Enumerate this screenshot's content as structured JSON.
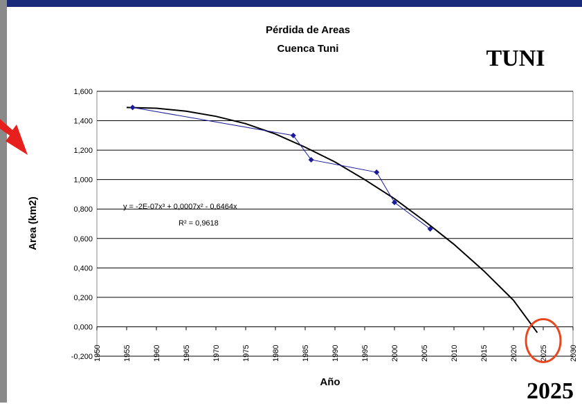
{
  "chart_data": {
    "type": "line",
    "title": "Pérdida de Areas",
    "subtitle": "Cuenca Tuni",
    "x_label": "Año",
    "y_label": "Area (km2)",
    "badge": "TUNI",
    "highlight_label": "2025",
    "highlight_x": 2025,
    "equation": "y = -2E-07x³ + 0,0007x² - 0,6464x",
    "r_squared": "R² = 0,9618",
    "xlim": [
      1950,
      2030
    ],
    "xticks": [
      1950,
      1955,
      1960,
      1965,
      1970,
      1975,
      1980,
      1985,
      1990,
      1995,
      2000,
      2005,
      2010,
      2015,
      2020,
      2025,
      2030
    ],
    "ylim": [
      -0.2,
      1.6
    ],
    "yticks": [
      {
        "value": -0.2,
        "label": "-0,200"
      },
      {
        "value": 0,
        "label": "0,000"
      },
      {
        "value": 0.2,
        "label": "0,200"
      },
      {
        "value": 0.4,
        "label": "0,400"
      },
      {
        "value": 0.6,
        "label": "0,600"
      },
      {
        "value": 0.8,
        "label": "0,800"
      },
      {
        "value": 1.0,
        "label": "1,000"
      },
      {
        "value": 1.2,
        "label": "1,200"
      },
      {
        "value": 1.4,
        "label": "1,400"
      },
      {
        "value": 1.6,
        "label": "1,600"
      }
    ],
    "grid": true,
    "series": [
      {
        "color": "#1a1a9a",
        "x": [
          1956,
          1983,
          1986,
          1997,
          2000,
          2006
        ],
        "values": [
          1.49,
          1.3,
          1.135,
          1.05,
          0.845,
          0.665
        ]
      }
    ],
    "trendline": {
      "color": "#000000",
      "x": [
        1955,
        1960,
        1965,
        1970,
        1975,
        1980,
        1985,
        1990,
        1995,
        2000,
        2005,
        2010,
        2015,
        2020,
        2024
      ],
      "values": [
        1.49,
        1.485,
        1.465,
        1.43,
        1.38,
        1.31,
        1.22,
        1.12,
        1.0,
        0.87,
        0.72,
        0.56,
        0.38,
        0.18,
        -0.04
      ]
    },
    "highlight_color": "#e8461d"
  }
}
